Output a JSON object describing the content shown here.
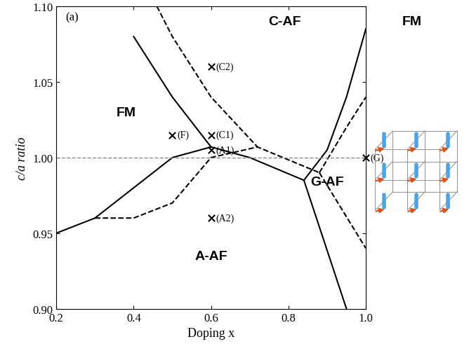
{
  "chart_data": {
    "type": "line",
    "xlabel": "Doping x",
    "ylabel": "c/a ratio",
    "xlim": [
      0.2,
      1.0
    ],
    "ylim": [
      0.9,
      1.1
    ],
    "xticks": [
      0.2,
      0.4,
      0.6,
      0.8,
      1.0
    ],
    "yticks": [
      {
        "value": 0.9,
        "label": "0.90"
      },
      0.95,
      {
        "value": 1.0,
        "label": "1.00"
      },
      1.05,
      {
        "value": 1.1,
        "label": "1.10"
      }
    ],
    "reference_line": {
      "y": 1.0,
      "line_style": "dashed",
      "color": "#888888"
    },
    "series": [
      {
        "color": "#000000",
        "line_style": "solid",
        "x": [
          0.2,
          0.3,
          0.5,
          0.6,
          0.7,
          0.84,
          0.95
        ],
        "values": [
          0.95,
          0.96,
          1.0,
          1.007,
          1.0,
          0.985,
          0.9
        ]
      },
      {
        "color": "#000000",
        "line_style": "solid",
        "x": [
          0.4,
          0.5,
          0.6
        ],
        "values": [
          1.08,
          1.04,
          1.007
        ]
      },
      {
        "color": "#000000",
        "line_style": "solid",
        "x": [
          0.84,
          0.9,
          0.95,
          1.0
        ],
        "values": [
          0.985,
          1.005,
          1.04,
          1.085
        ]
      },
      {
        "color": "#000000",
        "line_style": "dashed",
        "x": [
          0.46,
          0.5,
          0.6,
          0.72
        ],
        "values": [
          1.1,
          1.08,
          1.04,
          1.007
        ]
      },
      {
        "color": "#000000",
        "line_style": "dashed",
        "x": [
          0.3,
          0.4,
          0.5,
          0.6,
          0.72,
          0.88
        ],
        "values": [
          0.96,
          0.96,
          0.97,
          1.0,
          1.007,
          0.99
        ]
      },
      {
        "color": "#000000",
        "line_style": "dashed",
        "x": [
          0.88,
          0.95,
          1.0
        ],
        "values": [
          0.99,
          1.02,
          1.04
        ]
      },
      {
        "color": "#000000",
        "line_style": "dashed",
        "x": [
          0.88,
          0.94,
          1.0
        ],
        "values": [
          0.99,
          0.965,
          0.94
        ]
      }
    ],
    "points": {
      "marker": "x",
      "color": "#000000",
      "x": [
        0.6,
        0.5,
        0.6,
        0.6,
        0.6,
        1.0
      ],
      "values": [
        1.06,
        1.015,
        1.015,
        1.005,
        0.96,
        1.0
      ],
      "labels": [
        "(C2)",
        "(F)",
        "(C1)",
        "(A1)",
        "(A2)",
        "(G)"
      ]
    },
    "annotations": [
      {
        "text": "(a)",
        "x": 0.24,
        "y": 1.093
      },
      {
        "text": "FM",
        "x": 0.38,
        "y": 1.03
      },
      {
        "text": "C-AF",
        "x": 0.79,
        "y": 1.09
      },
      {
        "text": "A-AF",
        "x": 0.6,
        "y": 0.935
      },
      {
        "text": "G-AF",
        "x": 0.9,
        "y": 0.984
      },
      {
        "text": "FM",
        "x": 1.12,
        "y": 1.09
      }
    ]
  }
}
